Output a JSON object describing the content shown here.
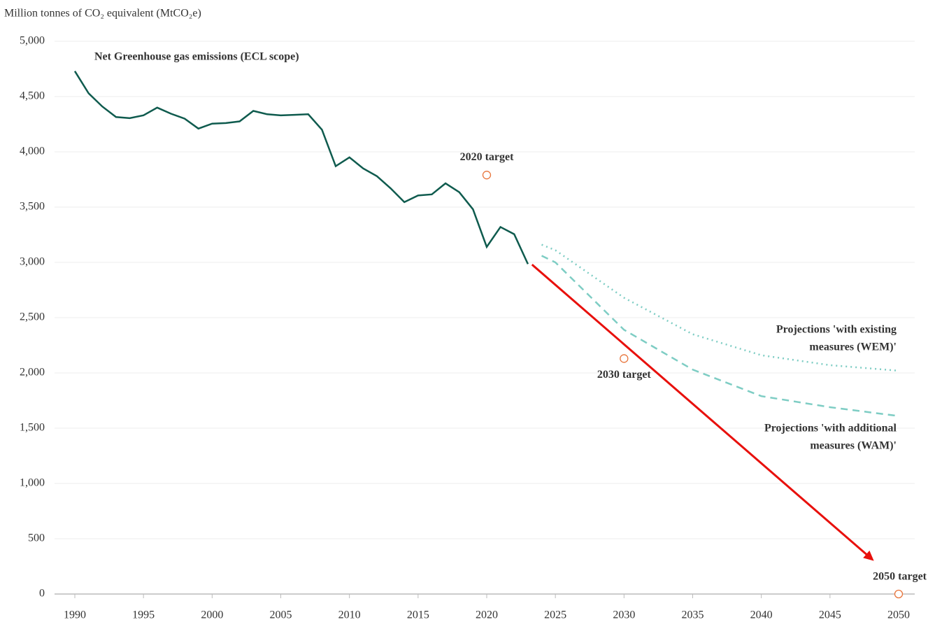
{
  "chart_data": {
    "type": "line",
    "y_axis_label": "Million tonnes of CO₂ equivalent (MtCO₂e)",
    "xlim": [
      1990,
      2050
    ],
    "xticks": [
      1990,
      1995,
      2000,
      2005,
      2010,
      2015,
      2020,
      2025,
      2030,
      2035,
      2040,
      2045,
      2050
    ],
    "ylim": [
      0,
      5000
    ],
    "yticks": [
      0,
      500,
      {
        "value": 1000,
        "label": "1,000"
      },
      {
        "value": 1500,
        "label": "1,500"
      },
      {
        "value": 2000,
        "label": "2,000"
      },
      {
        "value": 2500,
        "label": "2,500"
      },
      {
        "value": 3000,
        "label": "3,000"
      },
      {
        "value": 3500,
        "label": "3,500"
      },
      {
        "value": 4000,
        "label": "4,000"
      },
      {
        "value": 4500,
        "label": "4,500"
      },
      {
        "value": 5000,
        "label": "5,000"
      }
    ],
    "grid": true,
    "series": [
      {
        "name": "Net Greenhouse gas emissions (ECL scope)",
        "color": "#0f5b4e",
        "style": "solid",
        "x": [
          1990,
          1991,
          1992,
          1993,
          1994,
          1995,
          1996,
          1997,
          1998,
          1999,
          2000,
          2001,
          2002,
          2003,
          2004,
          2005,
          2006,
          2007,
          2008,
          2009,
          2010,
          2011,
          2012,
          2013,
          2014,
          2015,
          2016,
          2017,
          2018,
          2019,
          2020,
          2021,
          2022,
          2023
        ],
        "values": [
          4730,
          4530,
          4410,
          4315,
          4305,
          4330,
          4400,
          4345,
          4300,
          4210,
          4255,
          4260,
          4275,
          4370,
          4340,
          4330,
          4335,
          4340,
          4200,
          3870,
          3950,
          3850,
          3780,
          3670,
          3545,
          3605,
          3615,
          3715,
          3635,
          3480,
          3140,
          3320,
          3255,
          2985
        ]
      },
      {
        "label": [
          "Projections 'with existing",
          "measures (WEM)'"
        ],
        "color": "#7ecdc4",
        "style": "dotted",
        "x": [
          2024,
          2025,
          2030,
          2035,
          2040,
          2045,
          2050
        ],
        "values": [
          3160,
          3110,
          2680,
          2350,
          2160,
          2070,
          2020
        ]
      },
      {
        "label": [
          "Projections 'with additional",
          "measures (WAM)'"
        ],
        "color": "#7ecdc4",
        "style": "dashed",
        "x": [
          2024,
          2025,
          2030,
          2035,
          2040,
          2045,
          2050
        ],
        "values": [
          3060,
          3000,
          2390,
          2030,
          1790,
          1690,
          1610
        ]
      }
    ],
    "targets": {
      "color": "#e8743b",
      "x": [
        2020,
        2030,
        2050
      ],
      "values": [
        3790,
        2130,
        0
      ],
      "labels": [
        "2020 target",
        "2030 target",
        "2050 target"
      ]
    },
    "arrow": {
      "color": "#e8100c",
      "x": [
        2023.3,
        2048.2
      ],
      "values": [
        2980,
        300
      ]
    }
  }
}
